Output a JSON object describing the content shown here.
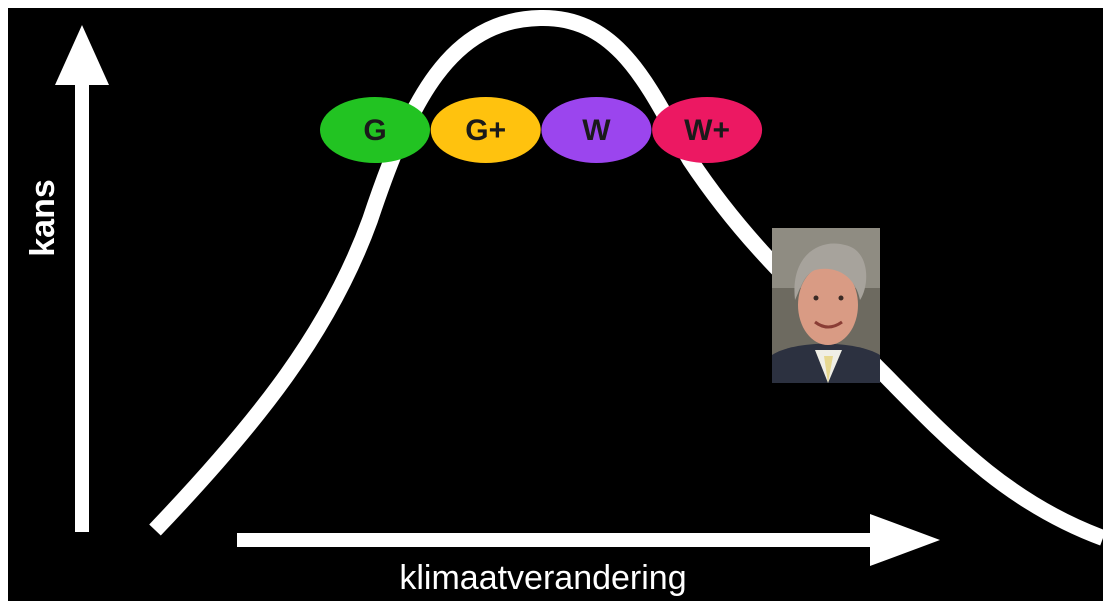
{
  "y_axis_label": "kans",
  "x_axis_label": "klimaatverandering",
  "scenarios": [
    {
      "label": "G",
      "color": "#22c322"
    },
    {
      "label": "G+",
      "color": "#ffc20e"
    },
    {
      "label": "W",
      "color": "#9b45ee"
    },
    {
      "label": "W+",
      "color": "#ec1862"
    }
  ]
}
